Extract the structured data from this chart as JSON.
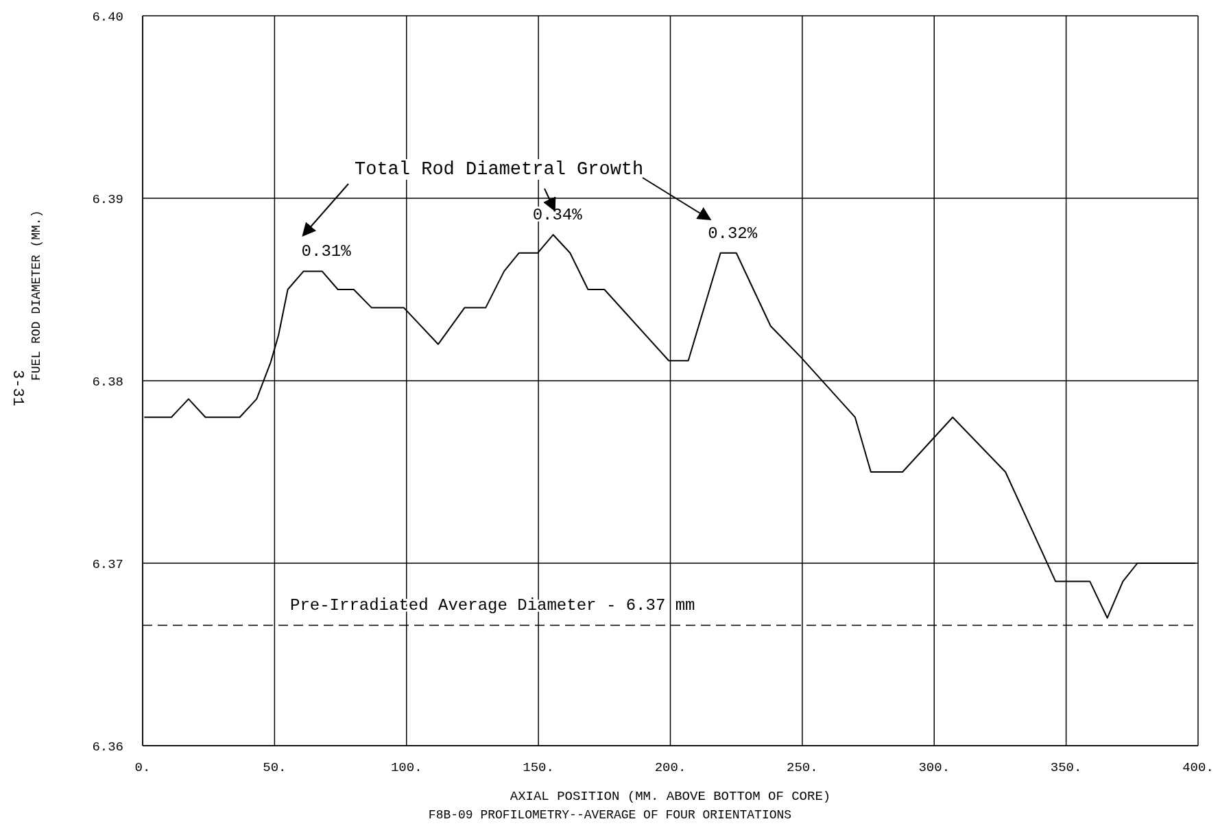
{
  "chart_data": {
    "type": "line",
    "title": "F8B-09 PROFILOMETRY--AVERAGE OF FOUR ORIENTATIONS",
    "xlabel": "AXIAL POSITION   (MM. ABOVE BOTTOM OF CORE)",
    "ylabel": "FUEL ROD DIAMETER   (MM.)",
    "x": [
      0.6,
      10.9,
      17.4,
      23.8,
      36.8,
      43.2,
      48.5,
      51.5,
      55,
      61,
      68,
      74,
      80,
      86.8,
      99,
      112,
      122,
      130,
      137,
      142.6,
      149.7,
      155.6,
      162,
      168.8,
      175,
      199.4,
      206.8,
      219,
      225,
      238,
      249.4,
      270,
      276,
      288,
      307,
      327,
      346,
      359,
      365.6,
      371.5,
      377,
      399
    ],
    "series": [
      {
        "color": "#000000",
        "values": [
          6.378,
          6.378,
          6.379,
          6.378,
          6.378,
          6.379,
          6.381,
          6.3825,
          6.385,
          6.386,
          6.386,
          6.385,
          6.385,
          6.384,
          6.384,
          6.382,
          6.384,
          6.384,
          6.386,
          6.387,
          6.387,
          6.388,
          6.387,
          6.385,
          6.385,
          6.3811,
          6.3811,
          6.387,
          6.387,
          6.383,
          6.3813,
          6.378,
          6.375,
          6.375,
          6.378,
          6.375,
          6.369,
          6.369,
          6.367,
          6.369,
          6.37,
          6.37
        ]
      }
    ],
    "xlim": [
      0,
      400
    ],
    "xticks": [
      {
        "value": 0,
        "label": "0."
      },
      {
        "value": 50,
        "label": "50."
      },
      {
        "value": 100,
        "label": "100."
      },
      {
        "value": 150,
        "label": "150."
      },
      {
        "value": 200,
        "label": "200."
      },
      {
        "value": 250,
        "label": "250."
      },
      {
        "value": 300,
        "label": "300."
      },
      {
        "value": 350,
        "label": "350."
      },
      {
        "value": 400,
        "label": "400."
      }
    ],
    "ylim": [
      6.36,
      6.4
    ],
    "yticks": [
      {
        "value": 6.36,
        "label": "6.36"
      },
      {
        "value": 6.37,
        "label": "6.37"
      },
      {
        "value": 6.38,
        "label": "6.38"
      },
      {
        "value": 6.39,
        "label": "6.39"
      },
      {
        "value": 6.4,
        "label": "6.40"
      }
    ],
    "grid": true,
    "marker": "none",
    "line_style": "solid",
    "ref_lines": [
      {
        "axis": "y",
        "value": 6.3666,
        "label": "Pre-Irradiated Average Diameter - 6.37 mm",
        "line_style": "dashed",
        "color": "#000000"
      }
    ],
    "annotations": [
      "Total Rod Diametral Growth",
      {
        "text": "0.31%",
        "x": 68,
        "y": 6.386
      },
      {
        "text": "0.34%",
        "x": 155.6,
        "y": 6.388
      },
      {
        "text": "0.32%",
        "x": 222,
        "y": 6.387
      },
      "3-31"
    ]
  }
}
